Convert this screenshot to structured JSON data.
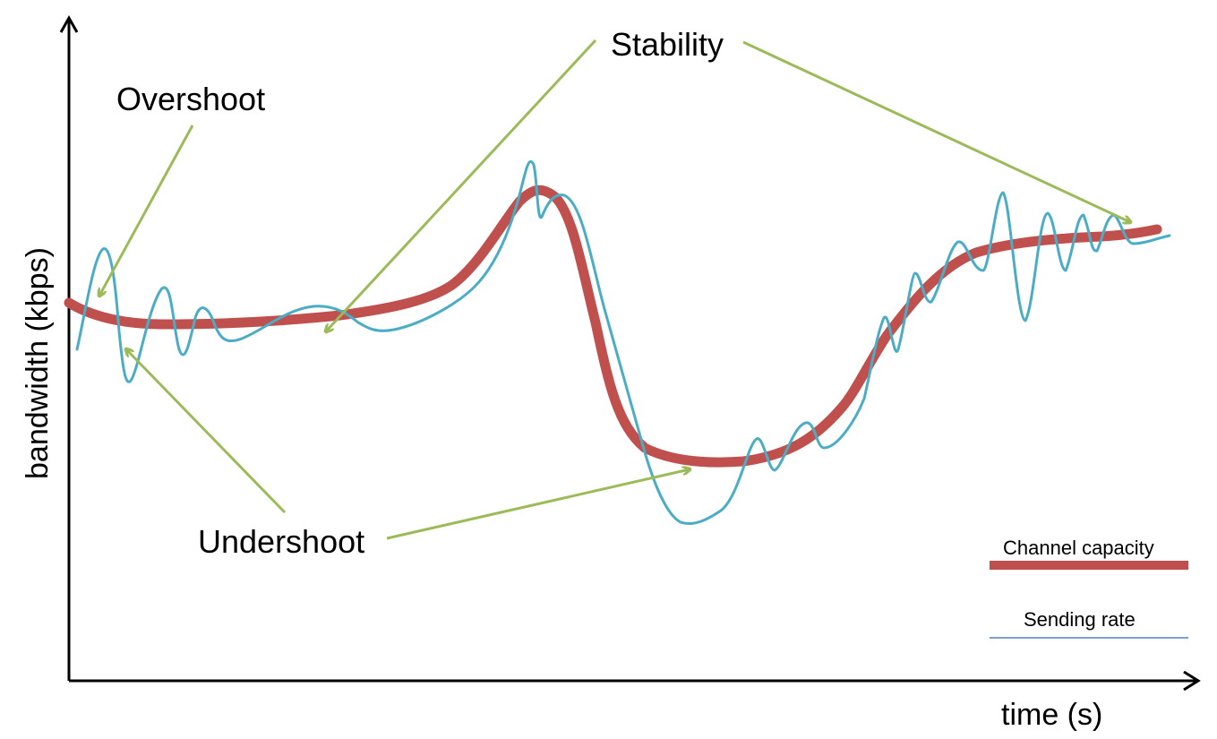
{
  "axes": {
    "y_label": "bandwidth (kbps)",
    "x_label": "time (s)"
  },
  "annotations": {
    "overshoot": "Overshoot",
    "stability": "Stability",
    "undershoot": "Undershoot"
  },
  "legend": {
    "channel_capacity": "Channel capacity",
    "sending_rate": "Sending rate"
  },
  "colors": {
    "channel_capacity": "#c0504d",
    "sending_rate": "#4bacc6",
    "annotation_arrow": "#9bbb59",
    "axis": "#000000"
  }
}
